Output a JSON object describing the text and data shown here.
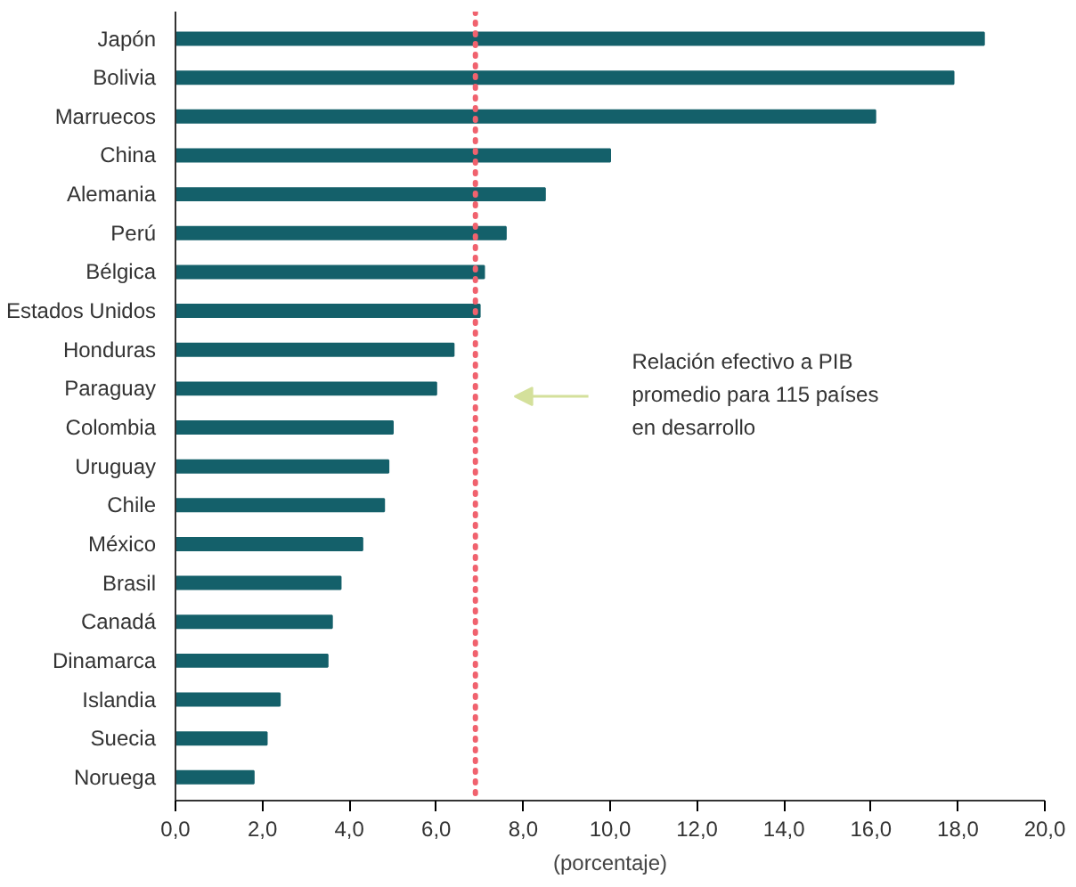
{
  "chart_data": {
    "type": "bar",
    "orientation": "horizontal",
    "xlabel": "(porcentaje)",
    "categories": [
      "Japón",
      "Bolivia",
      "Marruecos",
      "China",
      "Alemania",
      "Perú",
      "Bélgica",
      "Estados Unidos",
      "Honduras",
      "Paraguay",
      "Colombia",
      "Uruguay",
      "Chile",
      "México",
      "Brasil",
      "Canadá",
      "Dinamarca",
      "Islandia",
      "Suecia",
      "Noruega"
    ],
    "values": [
      18.6,
      17.9,
      16.1,
      10.0,
      8.5,
      7.6,
      7.1,
      7.0,
      6.4,
      6.0,
      5.0,
      4.9,
      4.8,
      4.3,
      3.8,
      3.6,
      3.5,
      2.4,
      2.1,
      1.8
    ],
    "color": "#14606a",
    "xlim": [
      0,
      20
    ],
    "xticks": [
      {
        "value": 0,
        "label": "0,0"
      },
      {
        "value": 2,
        "label": "2,0"
      },
      {
        "value": 4,
        "label": "4,0"
      },
      {
        "value": 6,
        "label": "6,0"
      },
      {
        "value": 8,
        "label": "8,0"
      },
      {
        "value": 10,
        "label": "10,0"
      },
      {
        "value": 12,
        "label": "12,0"
      },
      {
        "value": 14,
        "label": "14,0"
      },
      {
        "value": 16,
        "label": "16,0"
      },
      {
        "value": 18,
        "label": "18,0"
      },
      {
        "value": 20,
        "label": "20,0"
      }
    ],
    "grid": false,
    "annotations": [
      "Relación efectivo a PIB\npromedio para 115 países\nen desarrollo"
    ],
    "ref_lines": [
      {
        "axis": "x",
        "value": 6.9,
        "color": "#f0626e",
        "line_style": "dotted"
      }
    ]
  }
}
